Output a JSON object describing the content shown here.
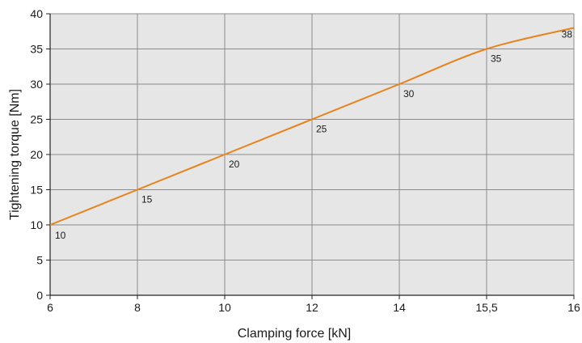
{
  "chart_data": {
    "type": "line",
    "title": "",
    "xlabel": "Clamping force [kN]",
    "ylabel": "Tightening torque [Nm]",
    "x_ticks": [
      "6",
      "8",
      "10",
      "12",
      "14",
      "15,5",
      "16"
    ],
    "y_ticks": [
      "0",
      "5",
      "10",
      "15",
      "20",
      "25",
      "30",
      "35",
      "40"
    ],
    "ylim": [
      0,
      40
    ],
    "grid": true,
    "series": [
      {
        "x": [
          "6",
          "8",
          "10",
          "12",
          "14",
          "15,5",
          "16"
        ],
        "values": [
          10,
          15,
          20,
          25,
          30,
          35,
          38
        ],
        "point_labels": [
          "10",
          "15",
          "20",
          "25",
          "30",
          "35",
          "38"
        ]
      }
    ],
    "colors": {
      "plot_background": "#e6e6e6",
      "grid": "#8c8c8c",
      "axis": "#222222",
      "line": "#e8821c"
    }
  }
}
